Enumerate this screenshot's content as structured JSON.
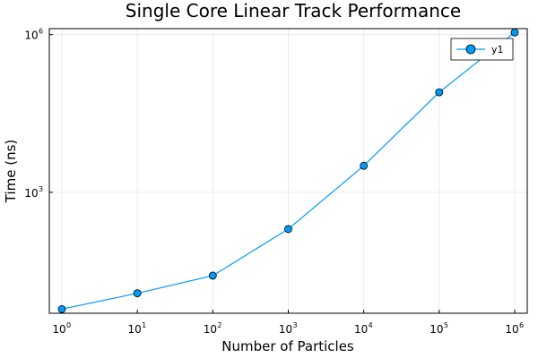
{
  "chart_data": {
    "type": "line",
    "title": "Single Core Linear Track Performance",
    "xlabel": "Number of Particles",
    "ylabel": "Time (ns)",
    "x_scale": "log10",
    "y_scale": "log10",
    "xlim": [
      1,
      1000000
    ],
    "ylim": [
      5,
      1300000
    ],
    "x_ticks": [
      {
        "base": "10",
        "exp": "0",
        "value": 1
      },
      {
        "base": "10",
        "exp": "1",
        "value": 10
      },
      {
        "base": "10",
        "exp": "2",
        "value": 100
      },
      {
        "base": "10",
        "exp": "3",
        "value": 1000
      },
      {
        "base": "10",
        "exp": "4",
        "value": 10000
      },
      {
        "base": "10",
        "exp": "5",
        "value": 100000
      },
      {
        "base": "10",
        "exp": "6",
        "value": 1000000
      }
    ],
    "y_ticks": [
      {
        "base": "10",
        "exp": "3",
        "value": 1000
      },
      {
        "base": "10",
        "exp": "6",
        "value": 1000000
      }
    ],
    "grid": true,
    "legend_position": "top-right",
    "series": [
      {
        "name": "y1",
        "color": "#009af9",
        "marker": "circle",
        "x": [
          1,
          10,
          100,
          1000,
          10000,
          100000,
          1000000
        ],
        "y": [
          6,
          12,
          26,
          200,
          3200,
          80000,
          1100000
        ]
      }
    ]
  }
}
